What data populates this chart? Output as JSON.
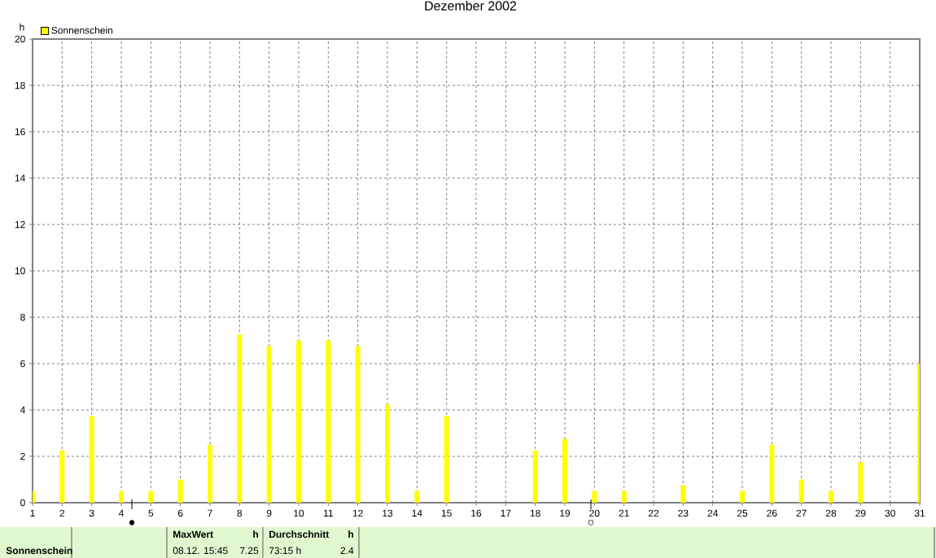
{
  "chart_data": {
    "type": "bar",
    "title": "Dezember 2002",
    "ylabel": "h",
    "x": [
      1,
      2,
      3,
      4,
      5,
      6,
      7,
      8,
      9,
      10,
      11,
      12,
      13,
      14,
      15,
      16,
      17,
      18,
      19,
      20,
      21,
      22,
      23,
      24,
      25,
      26,
      27,
      28,
      29,
      30,
      31
    ],
    "xlim": [
      1,
      31
    ],
    "xticks": [
      1,
      2,
      3,
      4,
      5,
      6,
      7,
      8,
      9,
      10,
      11,
      12,
      13,
      14,
      15,
      16,
      17,
      18,
      19,
      20,
      21,
      22,
      23,
      24,
      25,
      26,
      27,
      28,
      29,
      30,
      31
    ],
    "ylim": [
      0,
      20
    ],
    "yticks": [
      0,
      2,
      4,
      6,
      8,
      10,
      12,
      14,
      16,
      18,
      20
    ],
    "series": [
      {
        "name": "Sonnenschein",
        "color": "#ffff00",
        "values": [
          0.5,
          2.25,
          3.75,
          0.5,
          0.5,
          1,
          2.5,
          7.25,
          6.75,
          7,
          7,
          6.75,
          4.25,
          0.5,
          3.75,
          0,
          0,
          2.25,
          2.75,
          0.5,
          0.5,
          0,
          0.75,
          0,
          0.5,
          2.5,
          1,
          0.5,
          1.75,
          0,
          6
        ]
      }
    ],
    "grid": true,
    "legend": "top left",
    "annotations": [
      "Sonnenschein",
      "MaxWert",
      "h",
      "08.12. 15:45",
      "7.25",
      "Durchschnitt",
      "h",
      "73:15 h",
      "2.4",
      "●",
      "○"
    ]
  }
}
